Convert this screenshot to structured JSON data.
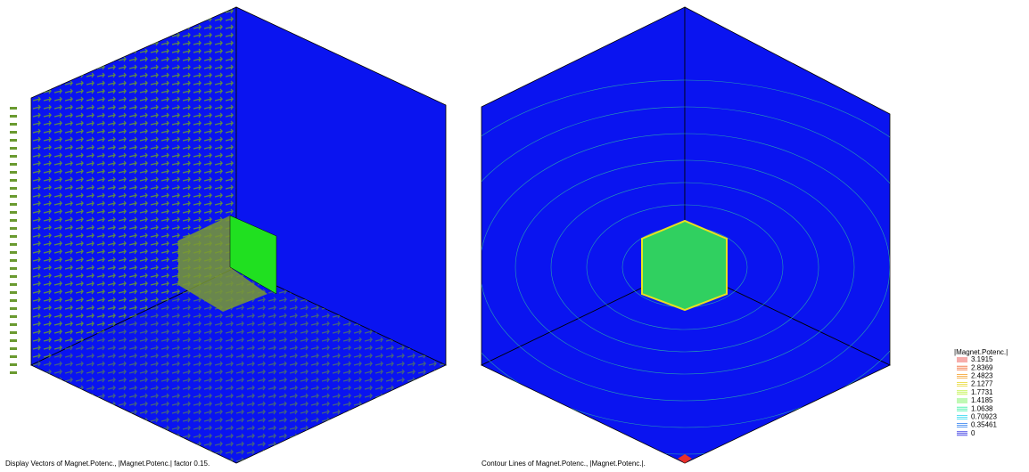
{
  "left_view": {
    "caption": "Display Vectors of Magnet.Potenc., |Magnet.Potenc.| factor 0.15."
  },
  "right_view": {
    "caption": "Contour Lines of Magnet.Potenc., |Magnet.Potenc.|."
  },
  "legend": {
    "title": "|Magnet.Potenc.|",
    "levels": [
      {
        "value": 3.1915,
        "color": "#e8302a"
      },
      {
        "value": 2.8369,
        "color": "#f0602a"
      },
      {
        "value": 2.4823,
        "color": "#f4a02a"
      },
      {
        "value": 2.1277,
        "color": "#e8d830"
      },
      {
        "value": 1.7731,
        "color": "#b8f030"
      },
      {
        "value": 1.4185,
        "color": "#60f040"
      },
      {
        "value": 1.0638,
        "color": "#30f0a0"
      },
      {
        "value": 0.70923,
        "color": "#30d8f0"
      },
      {
        "value": 0.35461,
        "color": "#3080f0"
      },
      {
        "value": 0,
        "color": "#2020e0"
      }
    ]
  }
}
